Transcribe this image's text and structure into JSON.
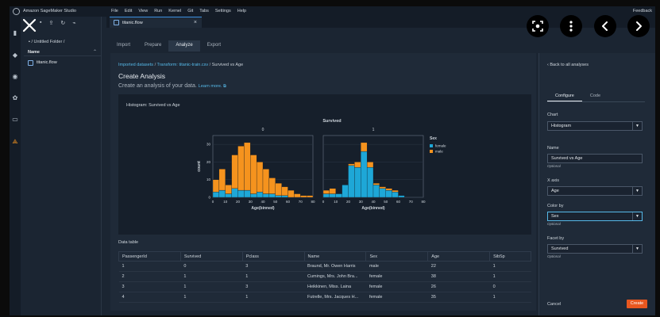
{
  "app": {
    "title": "Amazon SageMaker Studio",
    "menus": [
      "File",
      "Edit",
      "View",
      "Run",
      "Kernel",
      "Git",
      "Tabs",
      "Settings",
      "Help"
    ],
    "feedback": "Feedback"
  },
  "file_browser": {
    "breadcrumb": "/ Untitled Folder /",
    "header_name": "Name",
    "items": [
      {
        "name": "titanic.flow"
      }
    ]
  },
  "document_tab": {
    "label": "titanic.flow"
  },
  "step_tabs": [
    "Import",
    "Prepare",
    "Analyze",
    "Export"
  ],
  "active_step": "Analyze",
  "breadcrumbs": {
    "link1": "Imported datasets",
    "link2": "Transform: titanic-train.csv",
    "current": "Survived vs Age"
  },
  "page_title": "Create Analysis",
  "subtitle": "Create an analysis of your data.",
  "learn_more": "Learn more.",
  "chart_data": {
    "type": "bar",
    "title": "Histogram: Survived vs Age",
    "facet_title": "Survived",
    "facets": [
      "0",
      "1"
    ],
    "xlabel": "Age(binned)",
    "ylabel": "count",
    "ylim": [
      0,
      35
    ],
    "yticks": [
      0,
      10,
      20,
      30
    ],
    "xticks": [
      0,
      10,
      20,
      30,
      40,
      50,
      60,
      70,
      80
    ],
    "legend": {
      "title": "Sex",
      "entries": [
        "female",
        "male"
      ],
      "position": "right"
    },
    "colors": {
      "female": "#1ea7d7",
      "male": "#f5931e"
    },
    "bins": [
      [
        0,
        5
      ],
      [
        5,
        10
      ],
      [
        10,
        15
      ],
      [
        15,
        20
      ],
      [
        20,
        25
      ],
      [
        25,
        30
      ],
      [
        30,
        35
      ],
      [
        35,
        40
      ],
      [
        40,
        45
      ],
      [
        45,
        50
      ],
      [
        50,
        55
      ],
      [
        55,
        60
      ],
      [
        60,
        65
      ],
      [
        65,
        70
      ],
      [
        70,
        75
      ],
      [
        75,
        80
      ]
    ],
    "panels": [
      {
        "survived": "0",
        "female": [
          3,
          4,
          2,
          5,
          4,
          4,
          2,
          3,
          2,
          2,
          1,
          1,
          0,
          0,
          0,
          0
        ],
        "male": [
          7,
          12,
          5,
          19,
          25,
          27,
          22,
          17,
          14,
          9,
          7,
          5,
          4,
          2,
          1,
          1
        ]
      },
      {
        "survived": "1",
        "female": [
          2,
          2,
          2,
          7,
          18,
          17,
          26,
          17,
          7,
          5,
          4,
          3,
          1,
          0,
          0,
          0
        ],
        "male": [
          2,
          3,
          0,
          0,
          1,
          3,
          5,
          3,
          1,
          1,
          1,
          1,
          0,
          0,
          0,
          0
        ]
      }
    ]
  },
  "data_table": {
    "label": "Data table",
    "columns": [
      "PassengerId",
      "Survived",
      "Pclass",
      "Name",
      "Sex",
      "Age",
      "SibSp"
    ],
    "rows": [
      [
        "1",
        "0",
        "3",
        "Braund, Mr. Owen Harris",
        "male",
        "22",
        "1"
      ],
      [
        "2",
        "1",
        "1",
        "Cumings, Mrs. John Bra...",
        "female",
        "38",
        "1"
      ],
      [
        "3",
        "1",
        "3",
        "Heikkinen, Miss. Laina",
        "female",
        "26",
        "0"
      ],
      [
        "4",
        "1",
        "1",
        "Futrelle, Mrs. Jacques H...",
        "female",
        "35",
        "1"
      ]
    ]
  },
  "right_panel": {
    "back": "Back to all analyses",
    "tabs": [
      "Configure",
      "Code"
    ],
    "chart_label": "Chart",
    "chart_value": "Histogram",
    "name_label": "Name",
    "name_value": "Survived vs Age",
    "optional": "Optional",
    "xaxis_label": "X axis",
    "xaxis_value": "Age",
    "colorby_label": "Color by",
    "colorby_value": "Sex",
    "facetby_label": "Facet by",
    "facetby_value": "Survived",
    "cancel": "Cancel",
    "create": "Create"
  }
}
